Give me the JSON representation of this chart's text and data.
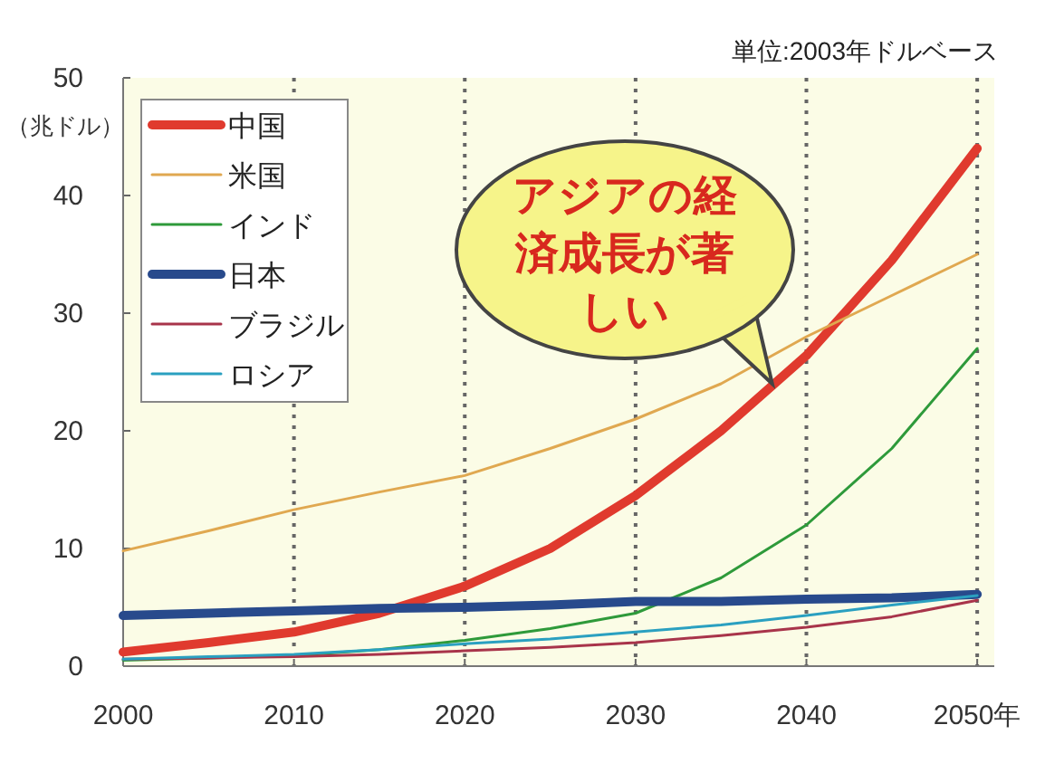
{
  "chart_data": {
    "type": "line",
    "ylabel": "（兆ドル）",
    "x": [
      2000,
      2005,
      2010,
      2015,
      2020,
      2025,
      2030,
      2035,
      2040,
      2045,
      2050
    ],
    "series": [
      {
        "name": "中国",
        "color": "#e03a2e",
        "values": [
          1.2,
          2.0,
          2.9,
          4.5,
          6.8,
          10,
          14.5,
          20,
          26.4,
          34.5,
          44
        ]
      },
      {
        "name": "米国",
        "color": "#e0a850",
        "values": [
          9.8,
          11.5,
          13.3,
          14.8,
          16.2,
          18.5,
          21,
          24,
          28,
          31.5,
          35
        ]
      },
      {
        "name": "インド",
        "color": "#2e9a3a",
        "values": [
          0.5,
          0.7,
          0.9,
          1.4,
          2.2,
          3.2,
          4.5,
          7.5,
          12,
          18.5,
          27
        ]
      },
      {
        "name": "日本",
        "color": "#284a8c",
        "values": [
          4.3,
          4.5,
          4.7,
          4.9,
          5.0,
          5.2,
          5.5,
          5.5,
          5.7,
          5.8,
          6.1
        ]
      },
      {
        "name": "ブラジル",
        "color": "#a8344a",
        "values": [
          0.6,
          0.7,
          0.8,
          1.0,
          1.3,
          1.6,
          2.0,
          2.6,
          3.3,
          4.2,
          5.6
        ]
      },
      {
        "name": "ロシア",
        "color": "#2aa0c0",
        "values": [
          0.6,
          0.8,
          1.0,
          1.4,
          1.9,
          2.3,
          2.9,
          3.5,
          4.3,
          5.2,
          6.0
        ]
      }
    ],
    "xlim": [
      2000,
      2051
    ],
    "ylim": [
      0,
      50
    ],
    "xticks": [
      2000,
      2010,
      2020,
      2030,
      2040,
      {
        "value": 2050,
        "label": "2050年"
      }
    ],
    "yticks": [
      0,
      10,
      20,
      30,
      40,
      50
    ],
    "grid": "x",
    "legend": "top left",
    "marker": "none",
    "line_style": "solid",
    "annotations": [
      "単位:2003年ドルベース",
      {
        "text": "アジアの経済成長が著しい",
        "x": 2038,
        "y": 24
      }
    ]
  }
}
